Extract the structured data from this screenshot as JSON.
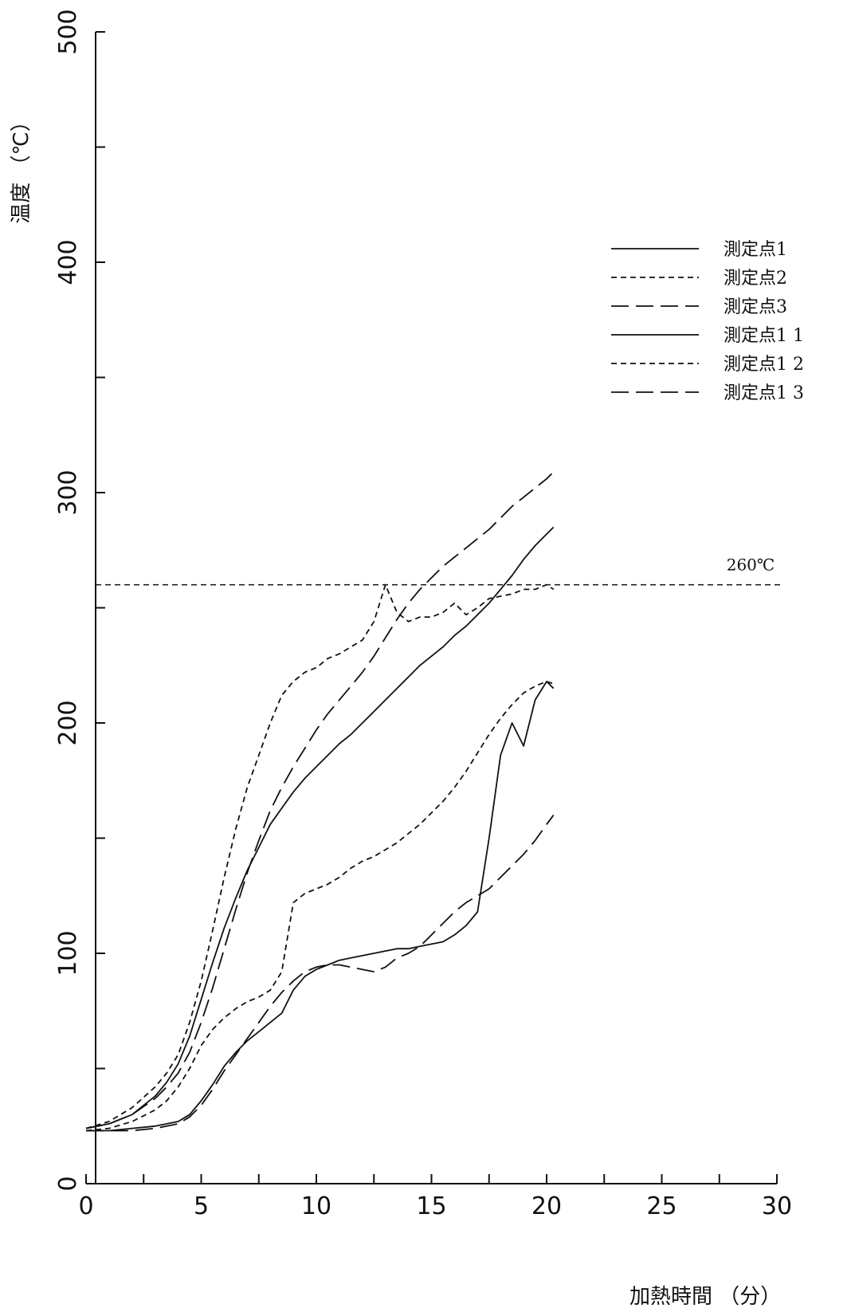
{
  "chart_data": {
    "type": "line",
    "xlabel": "加熱時間 （分）",
    "ylabel": "温度 （℃）",
    "xlim": [
      0,
      30
    ],
    "ylim": [
      0,
      500
    ],
    "xticks": [
      "0",
      "5",
      "10",
      "15",
      "20",
      "25",
      "30"
    ],
    "yticks": [
      "0",
      "100",
      "200",
      "300",
      "400",
      "500"
    ],
    "grid": false,
    "legend_position": "right",
    "reference_line": {
      "value": 260,
      "label": "260℃",
      "style": "dashed"
    },
    "series": [
      {
        "name": "測定点1",
        "style": "solid",
        "x": [
          0,
          1,
          2,
          3,
          3.5,
          4,
          4.5,
          5,
          5.5,
          6,
          6.5,
          7,
          7.5,
          8,
          8.5,
          9,
          9.5,
          10,
          10.5,
          11,
          11.5,
          12,
          12.5,
          13,
          13.5,
          14,
          14.5,
          15,
          15.5,
          16,
          16.5,
          17,
          17.5,
          18,
          18.5,
          19,
          19.5,
          20,
          20.3
        ],
        "y": [
          24,
          26,
          30,
          38,
          44,
          52,
          64,
          80,
          96,
          111,
          124,
          136,
          146,
          156,
          163,
          170,
          176,
          181,
          186,
          191,
          195,
          200,
          205,
          210,
          215,
          220,
          225,
          229,
          233,
          238,
          242,
          247,
          252,
          258,
          264,
          271,
          277,
          282,
          285
        ]
      },
      {
        "name": "測定点2",
        "style": "short-dash",
        "x": [
          0,
          1,
          2,
          3,
          3.5,
          4,
          4.5,
          5,
          5.5,
          6,
          6.5,
          7,
          7.5,
          8,
          8.5,
          9,
          9.5,
          10,
          10.5,
          11,
          11.5,
          12,
          12.5,
          13,
          13.5,
          14,
          14.5,
          15,
          15.5,
          16,
          16.5,
          17,
          17.5,
          18,
          18.5,
          19,
          19.5,
          20,
          20.3
        ],
        "y": [
          24,
          27,
          33,
          42,
          48,
          56,
          70,
          88,
          110,
          133,
          154,
          172,
          186,
          200,
          212,
          218,
          222,
          224,
          228,
          230,
          233,
          236,
          244,
          260,
          248,
          244,
          246,
          246,
          248,
          252,
          247,
          250,
          254,
          255,
          256,
          258,
          258,
          260,
          258
        ]
      },
      {
        "name": "測定点3",
        "style": "long-dash",
        "x": [
          0,
          1,
          2,
          3,
          3.5,
          4,
          4.5,
          5,
          5.5,
          6,
          6.5,
          7,
          7.5,
          8,
          8.5,
          9,
          9.5,
          10,
          10.5,
          11,
          11.5,
          12,
          12.5,
          13,
          13.5,
          14,
          14.5,
          15,
          15.5,
          16,
          16.5,
          17,
          17.5,
          18,
          18.5,
          19,
          19.5,
          20,
          20.3
        ],
        "y": [
          24,
          26,
          30,
          37,
          42,
          48,
          57,
          70,
          85,
          102,
          119,
          135,
          149,
          162,
          172,
          181,
          189,
          197,
          204,
          210,
          216,
          222,
          229,
          237,
          245,
          252,
          258,
          263,
          268,
          272,
          276,
          280,
          284,
          289,
          294,
          298,
          302,
          306,
          309
        ]
      },
      {
        "name": "測定点1 1",
        "style": "solid",
        "x": [
          0,
          1,
          2,
          3,
          3.5,
          4,
          4.5,
          5,
          5.5,
          6,
          6.5,
          7,
          7.5,
          8,
          8.5,
          9,
          9.5,
          10,
          10.5,
          11,
          11.5,
          12,
          12.5,
          13,
          13.5,
          14,
          14.5,
          15,
          15.5,
          16,
          16.5,
          17,
          17.5,
          18,
          18.5,
          19,
          19.5,
          20,
          20.3
        ],
        "y": [
          23,
          23,
          24,
          25,
          26,
          27,
          30,
          36,
          43,
          51,
          57,
          62,
          66,
          70,
          74,
          84,
          90,
          93,
          95,
          97,
          98,
          99,
          100,
          101,
          102,
          102,
          103,
          104,
          105,
          108,
          112,
          118,
          150,
          186,
          200,
          190,
          210,
          218,
          215
        ]
      },
      {
        "name": "測定点1 2",
        "style": "short-dash",
        "x": [
          0,
          1,
          2,
          3,
          3.5,
          4,
          4.5,
          5,
          5.5,
          6,
          6.5,
          7,
          7.5,
          8,
          8.5,
          9,
          9.5,
          10,
          10.5,
          11,
          11.5,
          12,
          12.5,
          13,
          13.5,
          14,
          14.5,
          15,
          15.5,
          16,
          16.5,
          17,
          17.5,
          18,
          18.5,
          19,
          19.5,
          20,
          20.3
        ],
        "y": [
          23,
          24,
          27,
          32,
          36,
          42,
          50,
          60,
          67,
          72,
          76,
          79,
          81,
          84,
          92,
          122,
          126,
          128,
          130,
          133,
          137,
          140,
          142,
          145,
          148,
          152,
          156,
          161,
          166,
          172,
          179,
          187,
          195,
          202,
          208,
          213,
          216,
          218,
          217
        ]
      },
      {
        "name": "測定点1 3",
        "style": "long-dash",
        "x": [
          0,
          1,
          2,
          3,
          3.5,
          4,
          4.5,
          5,
          5.5,
          6,
          6.5,
          7,
          7.5,
          8,
          8.5,
          9,
          9.5,
          10,
          10.5,
          11,
          11.5,
          12,
          12.5,
          13,
          13.5,
          14,
          14.5,
          15,
          15.5,
          16,
          16.5,
          17,
          17.5,
          18,
          18.5,
          19,
          19.5,
          20,
          20.3
        ],
        "y": [
          23,
          23,
          23,
          24,
          25,
          26,
          29,
          34,
          41,
          49,
          56,
          63,
          70,
          77,
          83,
          88,
          92,
          94,
          95,
          95,
          94,
          93,
          92,
          94,
          98,
          100,
          103,
          108,
          113,
          118,
          122,
          125,
          128,
          133,
          138,
          143,
          149,
          156,
          160
        ]
      }
    ]
  }
}
